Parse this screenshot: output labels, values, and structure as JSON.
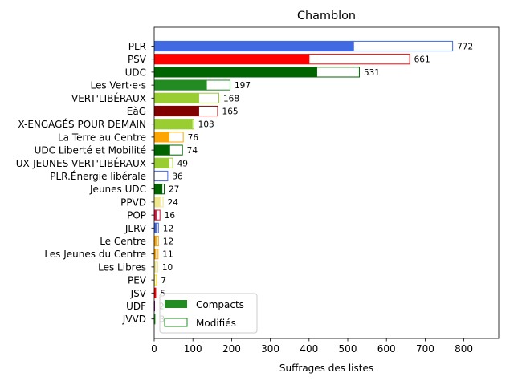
{
  "chart_data": {
    "type": "bar",
    "orientation": "horizontal",
    "stacked": true,
    "title": "Chamblon",
    "xlabel": "Suffrages des listes",
    "ylabel": "",
    "xlim": [
      0,
      890
    ],
    "xticks": [
      0,
      100,
      200,
      300,
      400,
      500,
      600,
      700,
      800
    ],
    "legend_position": "lower-left",
    "categories": [
      "PLR",
      "PSV",
      "UDC",
      "Les Vert·e·s",
      "VERT'LIBÉRAUX",
      "EàG",
      "X-ENGAGÉS POUR DEMAIN",
      "La Terre au Centre",
      "UDC Liberté et Mobilité",
      "UX-JEUNES VERT'LIBÉRAUX",
      "PLR.Énergie libérale",
      "Jeunes UDC",
      "PPVD",
      "POP",
      "JLRV",
      "Le Centre",
      "Les Jeunes du Centre",
      "Les Libres",
      "PEV",
      "JSV",
      "UDF",
      "JVVD"
    ],
    "colors": [
      "#4169e1",
      "#ff0000",
      "#006400",
      "#228b22",
      "#9acd32",
      "#800000",
      "#9acd32",
      "#ffa500",
      "#006400",
      "#9acd32",
      "#4169e1",
      "#006400",
      "#f0e68c",
      "#dc143c",
      "#4169e1",
      "#ffa500",
      "#ffa500",
      "#f0e68c",
      "#ffd700",
      "#ff0000",
      "#800080",
      "#228b22"
    ],
    "series": [
      {
        "name": "Compacts",
        "values": [
          515,
          400,
          420,
          135,
          115,
          115,
          98,
          38,
          40,
          38,
          0,
          20,
          15,
          5,
          5,
          5,
          4,
          4,
          1,
          3,
          0,
          0
        ]
      },
      {
        "name": "Modifiés",
        "values": [
          257,
          261,
          111,
          62,
          53,
          50,
          5,
          38,
          34,
          11,
          36,
          7,
          9,
          11,
          7,
          7,
          7,
          6,
          6,
          2,
          2,
          3
        ]
      }
    ],
    "totals": [
      "772",
      "661",
      "531",
      "197",
      "168",
      "165",
      "103",
      "76",
      "74",
      "49",
      "36",
      "27",
      "24",
      "16",
      "12",
      "12",
      "11",
      "10",
      "7",
      "5",
      "2",
      "3"
    ],
    "legend": {
      "compact_color": "#228b22",
      "modified_color": "#228b22"
    }
  }
}
